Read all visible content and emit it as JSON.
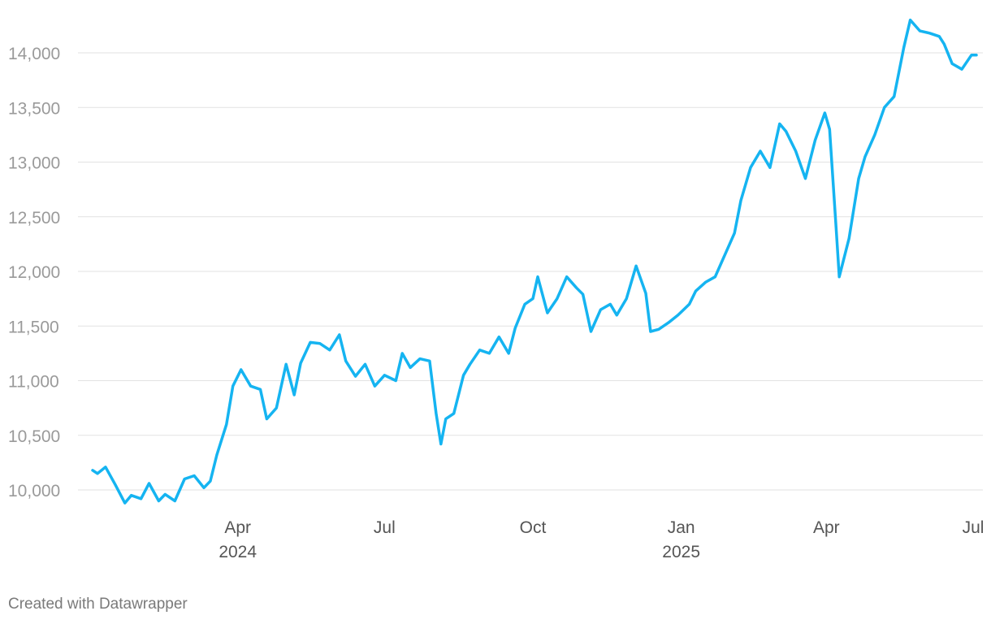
{
  "chart_data": {
    "type": "line",
    "title": "",
    "xlabel": "",
    "ylabel": "",
    "color": "#15b4f1",
    "grid": true,
    "legend": "none",
    "xlim": [
      "2024-01-02",
      "2025-07-03"
    ],
    "ylim": [
      9800,
      14400
    ],
    "yticks": [
      10000,
      10500,
      11000,
      11500,
      12000,
      12500,
      13000,
      13500,
      14000
    ],
    "ytick_labels": [
      "10,000",
      "10,500",
      "11,000",
      "11,500",
      "12,000",
      "12,500",
      "13,000",
      "13,500",
      "14,000"
    ],
    "xticks": [
      {
        "date": "2024-04-01",
        "label": "Apr",
        "sublabel": "2024"
      },
      {
        "date": "2024-07-01",
        "label": "Jul",
        "sublabel": ""
      },
      {
        "date": "2024-10-01",
        "label": "Oct",
        "sublabel": ""
      },
      {
        "date": "2025-01-01",
        "label": "Jan",
        "sublabel": "2025"
      },
      {
        "date": "2025-04-01",
        "label": "Apr",
        "sublabel": ""
      },
      {
        "date": "2025-07-01",
        "label": "Jul",
        "sublabel": ""
      }
    ],
    "series": [
      {
        "x": [
          "2024-01-02",
          "2024-01-05",
          "2024-01-10",
          "2024-01-16",
          "2024-01-22",
          "2024-01-26",
          "2024-02-01",
          "2024-02-06",
          "2024-02-12",
          "2024-02-16",
          "2024-02-22",
          "2024-02-28",
          "2024-03-05",
          "2024-03-11",
          "2024-03-15",
          "2024-03-19",
          "2024-03-25",
          "2024-03-29",
          "2024-04-03",
          "2024-04-09",
          "2024-04-15",
          "2024-04-19",
          "2024-04-25",
          "2024-05-01",
          "2024-05-06",
          "2024-05-10",
          "2024-05-16",
          "2024-05-22",
          "2024-05-28",
          "2024-06-03",
          "2024-06-07",
          "2024-06-13",
          "2024-06-19",
          "2024-06-25",
          "2024-07-01",
          "2024-07-08",
          "2024-07-12",
          "2024-07-17",
          "2024-07-23",
          "2024-07-29",
          "2024-08-02",
          "2024-08-05",
          "2024-08-08",
          "2024-08-13",
          "2024-08-19",
          "2024-08-23",
          "2024-08-29",
          "2024-09-04",
          "2024-09-10",
          "2024-09-16",
          "2024-09-20",
          "2024-09-26",
          "2024-10-01",
          "2024-10-04",
          "2024-10-10",
          "2024-10-16",
          "2024-10-22",
          "2024-10-28",
          "2024-11-01",
          "2024-11-06",
          "2024-11-12",
          "2024-11-18",
          "2024-11-22",
          "2024-11-28",
          "2024-12-04",
          "2024-12-10",
          "2024-12-13",
          "2024-12-18",
          "2024-12-24",
          "2024-12-30",
          "2025-01-06",
          "2025-01-10",
          "2025-01-16",
          "2025-01-22",
          "2025-01-28",
          "2025-02-03",
          "2025-02-07",
          "2025-02-13",
          "2025-02-19",
          "2025-02-25",
          "2025-03-03",
          "2025-03-07",
          "2025-03-13",
          "2025-03-19",
          "2025-03-25",
          "2025-03-31",
          "2025-04-03",
          "2025-04-07",
          "2025-04-09",
          "2025-04-15",
          "2025-04-21",
          "2025-04-25",
          "2025-05-01",
          "2025-05-07",
          "2025-05-13",
          "2025-05-19",
          "2025-05-23",
          "2025-05-29",
          "2025-06-04",
          "2025-06-10",
          "2025-06-13",
          "2025-06-18",
          "2025-06-24",
          "2025-06-30",
          "2025-07-03"
        ],
        "y": [
          10180,
          10150,
          10210,
          10050,
          9880,
          9950,
          9920,
          10060,
          9900,
          9960,
          9900,
          10100,
          10130,
          10020,
          10080,
          10320,
          10600,
          10950,
          11100,
          10950,
          10920,
          10650,
          10750,
          11150,
          10870,
          11160,
          11350,
          11340,
          11280,
          11420,
          11180,
          11040,
          11150,
          10950,
          11050,
          11000,
          11250,
          11120,
          11200,
          11180,
          10700,
          10420,
          10650,
          10700,
          11050,
          11150,
          11280,
          11250,
          11400,
          11250,
          11480,
          11700,
          11750,
          11950,
          11620,
          11750,
          11950,
          11850,
          11790,
          11450,
          11650,
          11700,
          11600,
          11750,
          12050,
          11800,
          11450,
          11470,
          11530,
          11600,
          11700,
          11820,
          11900,
          11950,
          12150,
          12350,
          12650,
          12950,
          13100,
          12950,
          13350,
          13280,
          13100,
          12850,
          13200,
          13450,
          13300,
          12400,
          11950,
          12300,
          12850,
          13050,
          13250,
          13500,
          13600,
          14050,
          14300,
          14200,
          14180,
          14150,
          14080,
          13900,
          13850,
          13980,
          13980
        ]
      }
    ],
    "credit": "Created with Datawrapper"
  }
}
